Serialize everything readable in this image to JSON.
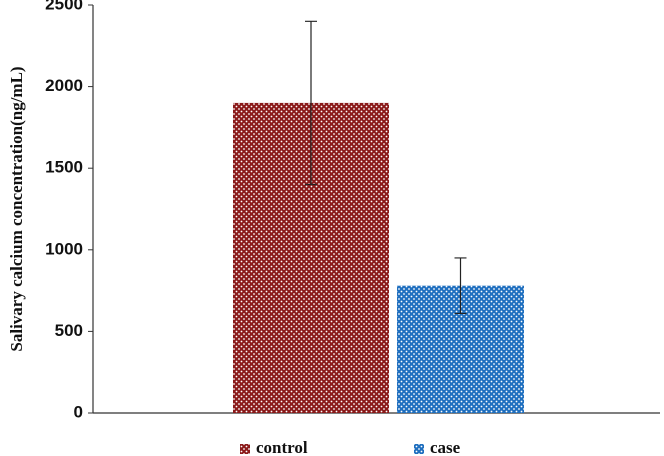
{
  "chart_data": {
    "type": "bar",
    "y_label": "Salivary calcium concentration(ng/mL)",
    "categories": [
      null
    ],
    "series": [
      {
        "name": "control",
        "color": "#8b1a1a",
        "values": [
          1900
        ],
        "errors": [
          500
        ]
      },
      {
        "name": "case",
        "color": "#1f6fbf",
        "values": [
          780
        ],
        "errors": [
          170
        ]
      }
    ],
    "ylim": [
      0,
      2500
    ],
    "yticks": [
      0,
      500,
      1000,
      1500,
      2000,
      2500
    ]
  }
}
